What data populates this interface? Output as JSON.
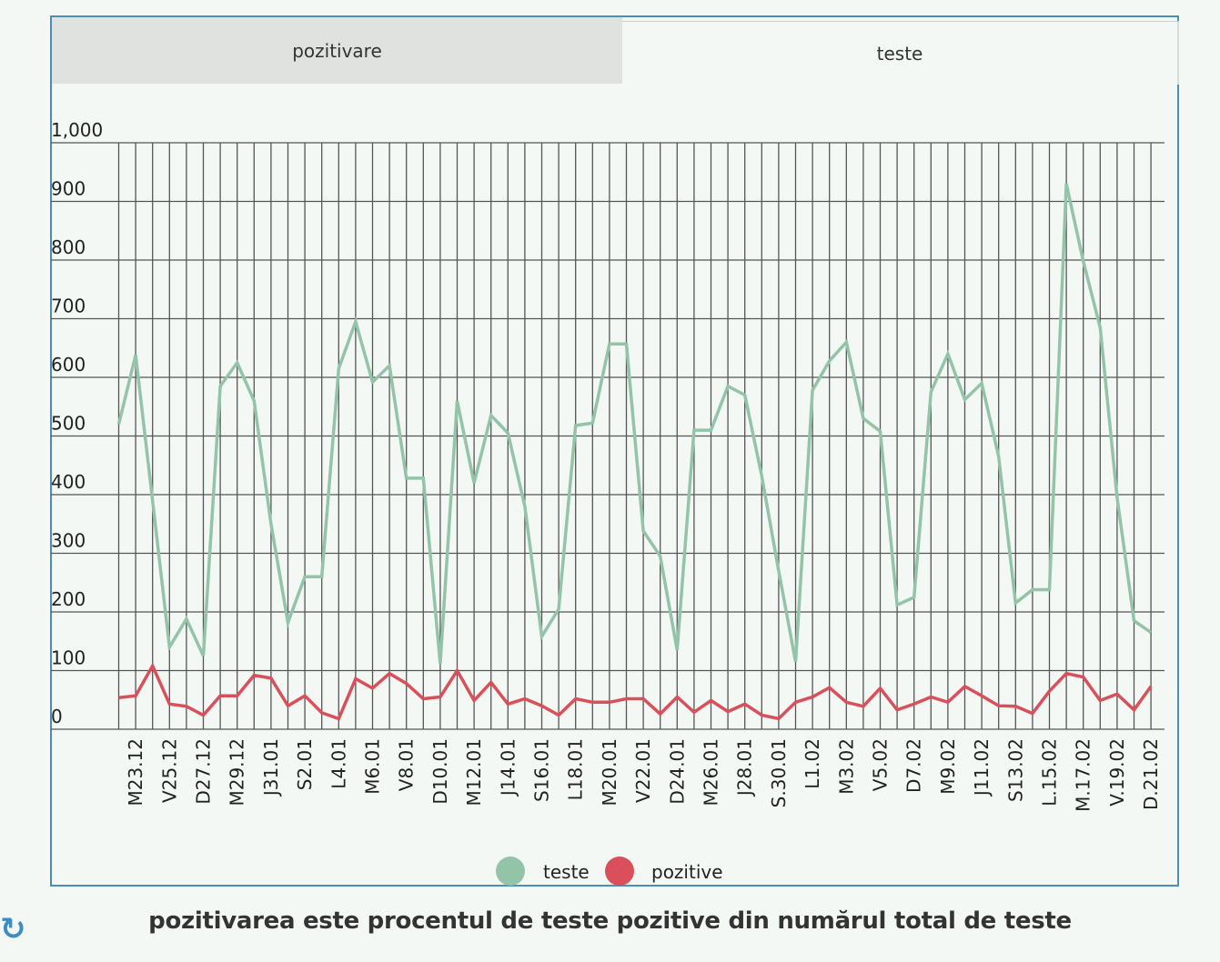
{
  "tabs": [
    {
      "label": "pozitivare",
      "active": false
    },
    {
      "label": "teste",
      "active": true
    }
  ],
  "caption": "pozitivarea este procentul de teste pozitive din numărul total de teste",
  "colors": {
    "teste": "#93c4a8",
    "pozitive": "#d94f5a",
    "frame": "#4a8fb5",
    "grid": "#555555"
  },
  "icons": {
    "refresh": "refresh-icon"
  },
  "chart_data": {
    "type": "line",
    "ylim": [
      0,
      1000
    ],
    "y_ticks": [
      0,
      100,
      200,
      300,
      400,
      500,
      600,
      700,
      800,
      900,
      1000
    ],
    "y_tick_labels": [
      "0",
      "100",
      "200",
      "300",
      "400",
      "500",
      "600",
      "700",
      "800",
      "900",
      "1,000"
    ],
    "x_tick_labels": [
      "M23.12",
      "V25.12",
      "D27.12",
      "M29.12",
      "J31.01",
      "S2.01",
      "L4.01",
      "M6.01",
      "V8.01",
      "D10.01",
      "M12.01",
      "J14.01",
      "S16.01",
      "L18.01",
      "M20.01",
      "V22.01",
      "D24.01",
      "M26.01",
      "J28.01",
      "S.30.01",
      "L1.02",
      "M3.02",
      "V5.02",
      "D7.02",
      "M9.02",
      "J11.02",
      "S13.02",
      "L.15.02",
      "M.17.02",
      "V.19.02",
      "D.21.02"
    ],
    "legend": [
      "teste",
      "pozitive"
    ],
    "legend_position": "bottom",
    "grid": true,
    "series": [
      {
        "name": "teste",
        "values": [
          520,
          638,
          390,
          140,
          188,
          125,
          585,
          625,
          560,
          350,
          182,
          260,
          260,
          615,
          695,
          592,
          620,
          428,
          428,
          112,
          560,
          420,
          535,
          505,
          380,
          158,
          205,
          518,
          522,
          657,
          657,
          338,
          295,
          135,
          510,
          510,
          585,
          570,
          432,
          270,
          115,
          578,
          628,
          660,
          530,
          508,
          212,
          225,
          575,
          640,
          562,
          590,
          465,
          215,
          238,
          238,
          930,
          798,
          685,
          395,
          185,
          165
        ]
      },
      {
        "name": "pozitive",
        "values": [
          54,
          57,
          108,
          43,
          39,
          24,
          57,
          57,
          92,
          87,
          40,
          57,
          28,
          18,
          86,
          70,
          95,
          78,
          52,
          55,
          100,
          49,
          80,
          43,
          52,
          40,
          24,
          52,
          46,
          46,
          52,
          52,
          26,
          55,
          29,
          49,
          30,
          43,
          24,
          18,
          46,
          55,
          71,
          46,
          39,
          70,
          33,
          43,
          55,
          46,
          73,
          57,
          40,
          39,
          27,
          65,
          95,
          89,
          49,
          60,
          33,
          73
        ]
      }
    ]
  }
}
